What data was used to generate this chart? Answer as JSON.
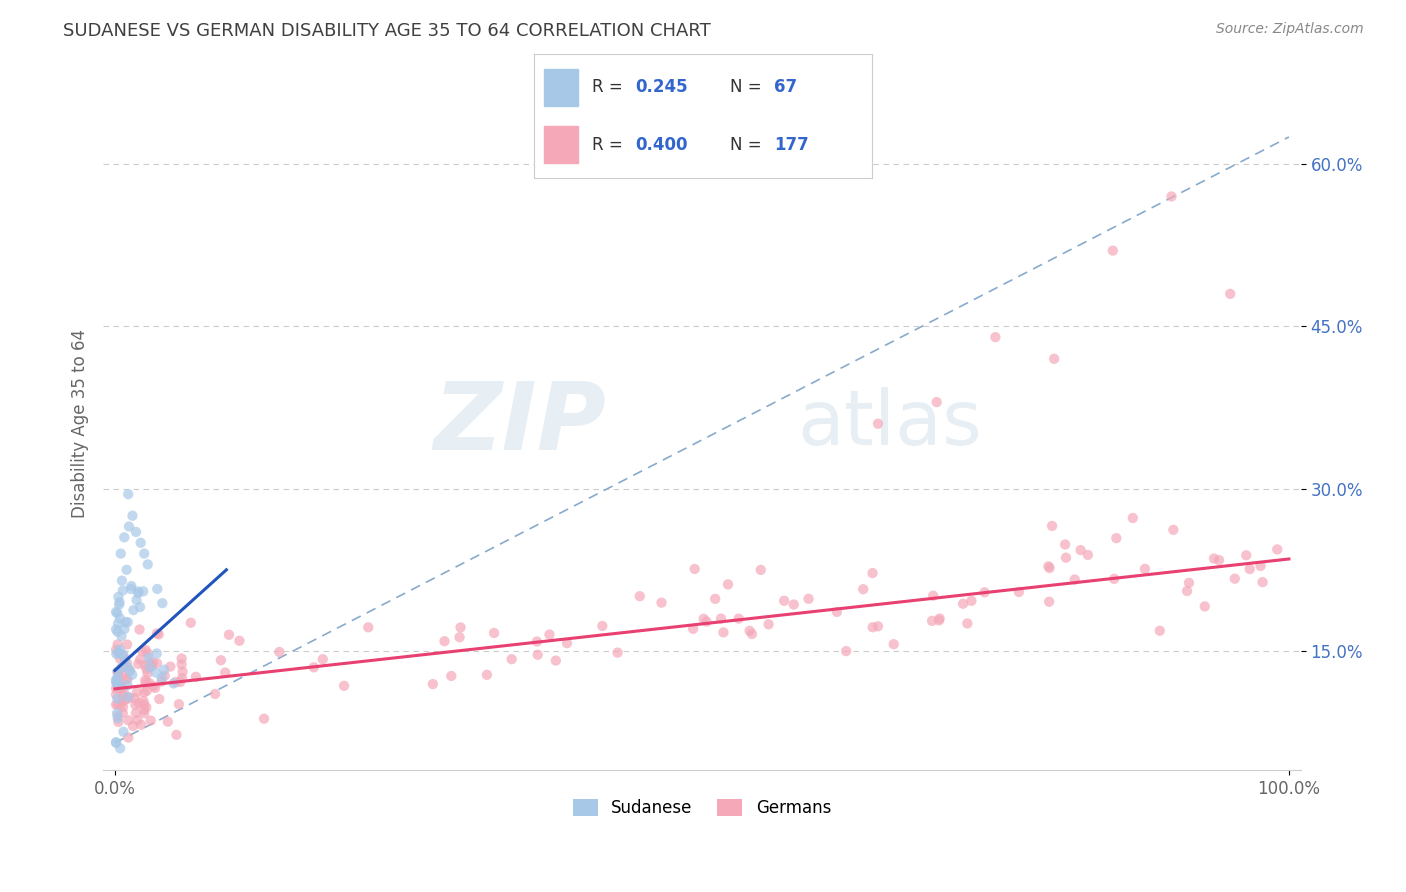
{
  "title": "SUDANESE VS GERMAN DISABILITY AGE 35 TO 64 CORRELATION CHART",
  "source_text": "Source: ZipAtlas.com",
  "xlabel": "",
  "ylabel": "Disability Age 35 to 64",
  "xlim": [
    -0.01,
    1.01
  ],
  "ylim": [
    0.04,
    0.68
  ],
  "yticks": [
    0.15,
    0.3,
    0.45,
    0.6
  ],
  "ytick_labels": [
    "15.0%",
    "30.0%",
    "45.0%",
    "60.0%"
  ],
  "xticks": [
    0.0,
    1.0
  ],
  "xtick_labels": [
    "0.0%",
    "100.0%"
  ],
  "sudanese_color": "#a8c8e8",
  "german_color": "#f4a8b8",
  "sudanese_line_color": "#2255bb",
  "german_line_color": "#e84070",
  "dash_line_color": "#88aacc",
  "watermark_zip": "ZIP",
  "watermark_atlas": "atlas",
  "background_color": "#ffffff",
  "grid_color": "#cccccc",
  "title_color": "#404040",
  "ytick_color": "#4472c4",
  "xtick_color": "#666666",
  "ylabel_color": "#666666",
  "sudanese_line_x": [
    0.0,
    0.095
  ],
  "sudanese_line_y": [
    0.132,
    0.225
  ],
  "german_line_x": [
    0.0,
    1.0
  ],
  "german_line_y": [
    0.115,
    0.235
  ],
  "dash_line_x": [
    0.0,
    1.0
  ],
  "dash_line_y": [
    0.065,
    0.625
  ]
}
